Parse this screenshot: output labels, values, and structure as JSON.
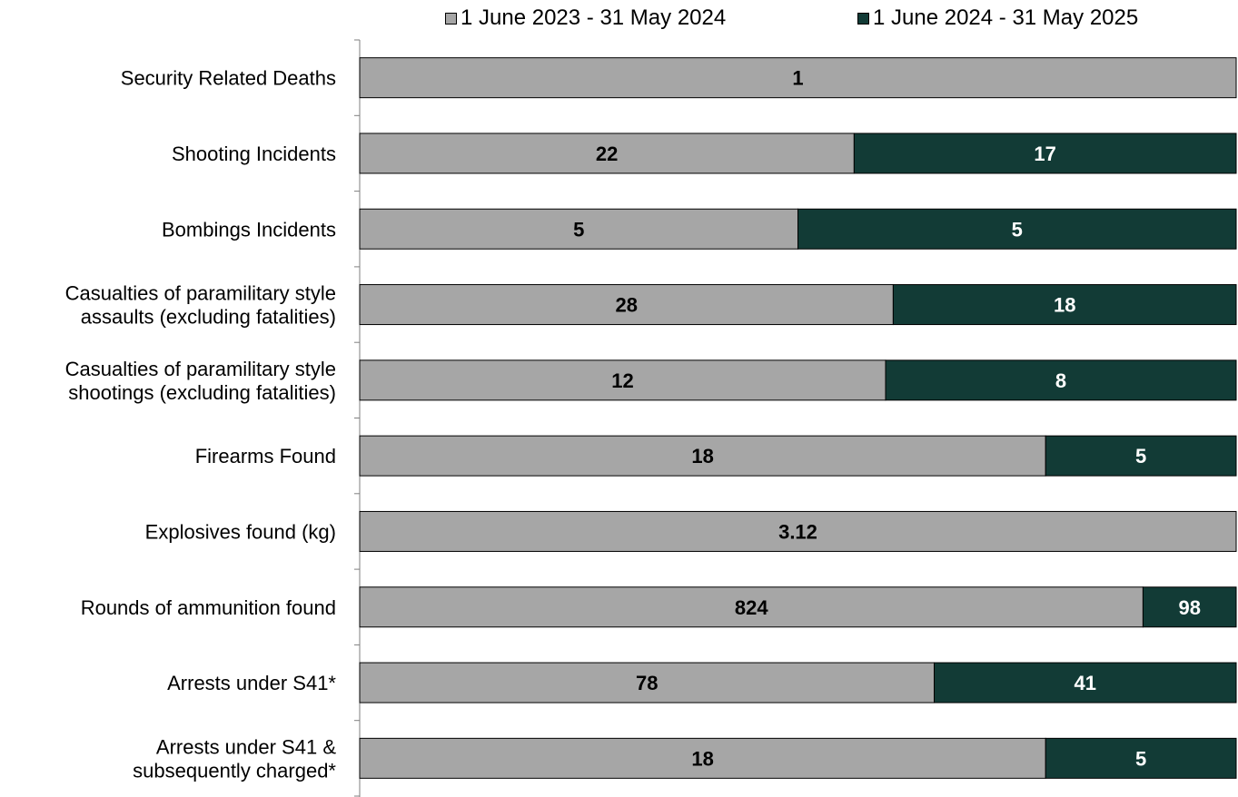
{
  "chart_data": {
    "type": "bar",
    "orientation": "horizontal",
    "stacking": "percent",
    "categories": [
      "Security Related Deaths",
      "Shooting Incidents",
      "Bombings Incidents",
      "Casualties of paramilitary style assaults (excluding fatalities)",
      "Casualties of paramilitary style shootings (excluding fatalities)",
      "Firearms Found",
      "Explosives found (kg)",
      "Rounds of ammunition found",
      "Arrests under S41*",
      "Arrests under S41 & subsequently charged*"
    ],
    "category_lines": [
      [
        "Security Related Deaths"
      ],
      [
        "Shooting Incidents"
      ],
      [
        "Bombings Incidents"
      ],
      [
        "Casualties of paramilitary style",
        "assaults (excluding fatalities)"
      ],
      [
        "Casualties of paramilitary style",
        "shootings (excluding fatalities)"
      ],
      [
        "Firearms Found"
      ],
      [
        "Explosives found (kg)"
      ],
      [
        "Rounds of ammunition found"
      ],
      [
        "Arrests under S41*"
      ],
      [
        "Arrests under S41 &",
        "subsequently charged*"
      ]
    ],
    "series": [
      {
        "name": "1 June 2023 - 31 May 2024",
        "color": "#a6a6a6",
        "label_color": "#000000",
        "values": [
          1,
          22,
          5,
          28,
          12,
          18,
          3.12,
          824,
          78,
          18
        ],
        "labels": [
          "1",
          "22",
          "5",
          "28",
          "12",
          "18",
          "3.12",
          "824",
          "78",
          "18"
        ]
      },
      {
        "name": "1 June 2024 - 31 May 2025",
        "color": "#123b36",
        "label_color": "#ffffff",
        "values": [
          0,
          17,
          5,
          18,
          8,
          5,
          0,
          98,
          41,
          5
        ],
        "labels": [
          "",
          "17",
          "5",
          "18",
          "8",
          "5",
          "",
          "98",
          "41",
          "5"
        ]
      }
    ],
    "legend_position": "top",
    "grid": false
  }
}
